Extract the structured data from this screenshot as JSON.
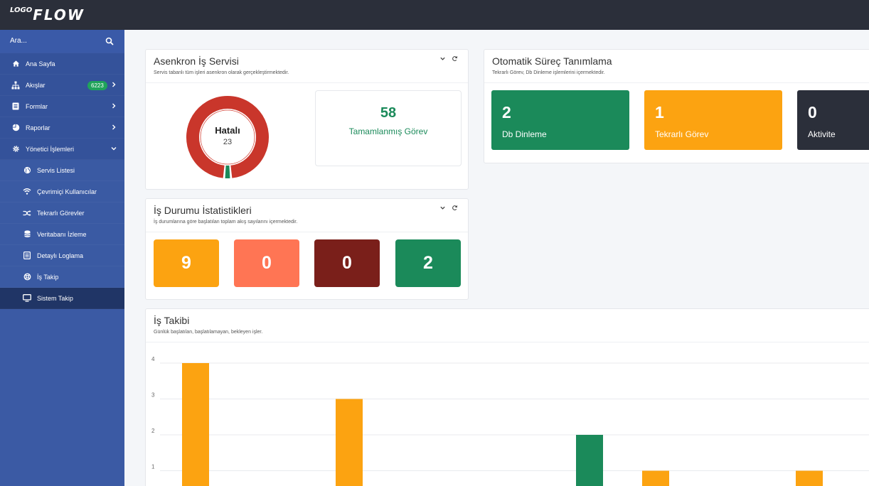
{
  "app": {
    "logo_small": "LOGO",
    "logo_big": "FLOW"
  },
  "search": {
    "placeholder": "Ara..."
  },
  "sidebar": {
    "items": [
      {
        "label": "Ana Sayfa"
      },
      {
        "label": "Akışlar",
        "badge": "6223"
      },
      {
        "label": "Formlar"
      },
      {
        "label": "Raporlar"
      },
      {
        "label": "Yönetici İşlemleri"
      }
    ],
    "sub_items": [
      {
        "label": "Servis Listesi"
      },
      {
        "label": "Çevrimiçi Kullanıcılar"
      },
      {
        "label": "Tekrarlı Görevler"
      },
      {
        "label": "Veritabanı İzleme"
      },
      {
        "label": "Detaylı Loglama"
      },
      {
        "label": "İş Takip"
      },
      {
        "label": "Sistem Takip"
      }
    ]
  },
  "async_service": {
    "title": "Asenkron İş Servisi",
    "subtitle": "Servis tabanlı tüm işleri asenkron olarak gerçekleştirmektedir.",
    "donut": {
      "label": "Hatalı",
      "value": "23",
      "error": 23,
      "success": 58,
      "error_color": "#c9362b",
      "success_color": "#1b8a5a"
    },
    "completed": {
      "value": "58",
      "label": "Tamamlanmış Görev"
    }
  },
  "auto_process": {
    "title": "Otomatik Süreç Tanımlama",
    "subtitle": "Tekrarlı Görev, Db Dinleme işlemlerini içermektedir.",
    "tiles": [
      {
        "value": "2",
        "label": "Db Dinleme",
        "color": "#1b8a5a"
      },
      {
        "value": "1",
        "label": "Tekrarlı Görev",
        "color": "#fca311"
      },
      {
        "value": "0",
        "label": "Aktivite",
        "color": "#2b2f3a"
      }
    ]
  },
  "job_stats": {
    "title": "İş Durumu İstatistikleri",
    "subtitle": "İş durumlarına göre başlatılan toplam akış sayılarını içermektedir.",
    "tiles": [
      {
        "value": "9",
        "color": "#fca311"
      },
      {
        "value": "0",
        "color": "#ff7554"
      },
      {
        "value": "0",
        "color": "#7a1f1a"
      },
      {
        "value": "2",
        "color": "#1b8a5a"
      }
    ]
  },
  "job_tracking": {
    "title": "İş Takibi",
    "subtitle": "Günlük başlatılan, başlatılamayan, bekleyen işler."
  },
  "chart_data": {
    "type": "bar",
    "y_ticks": [
      "4",
      "3",
      "2",
      "1"
    ],
    "ylim": [
      0,
      4
    ],
    "bars": [
      {
        "value": 4,
        "color": "#fca311"
      },
      {
        "value": 3,
        "color": "#fca311"
      },
      {
        "value": 2,
        "color": "#1b8a5a"
      },
      {
        "value": 1,
        "color": "#fca311"
      },
      {
        "value": 1,
        "color": "#fca311"
      }
    ]
  }
}
